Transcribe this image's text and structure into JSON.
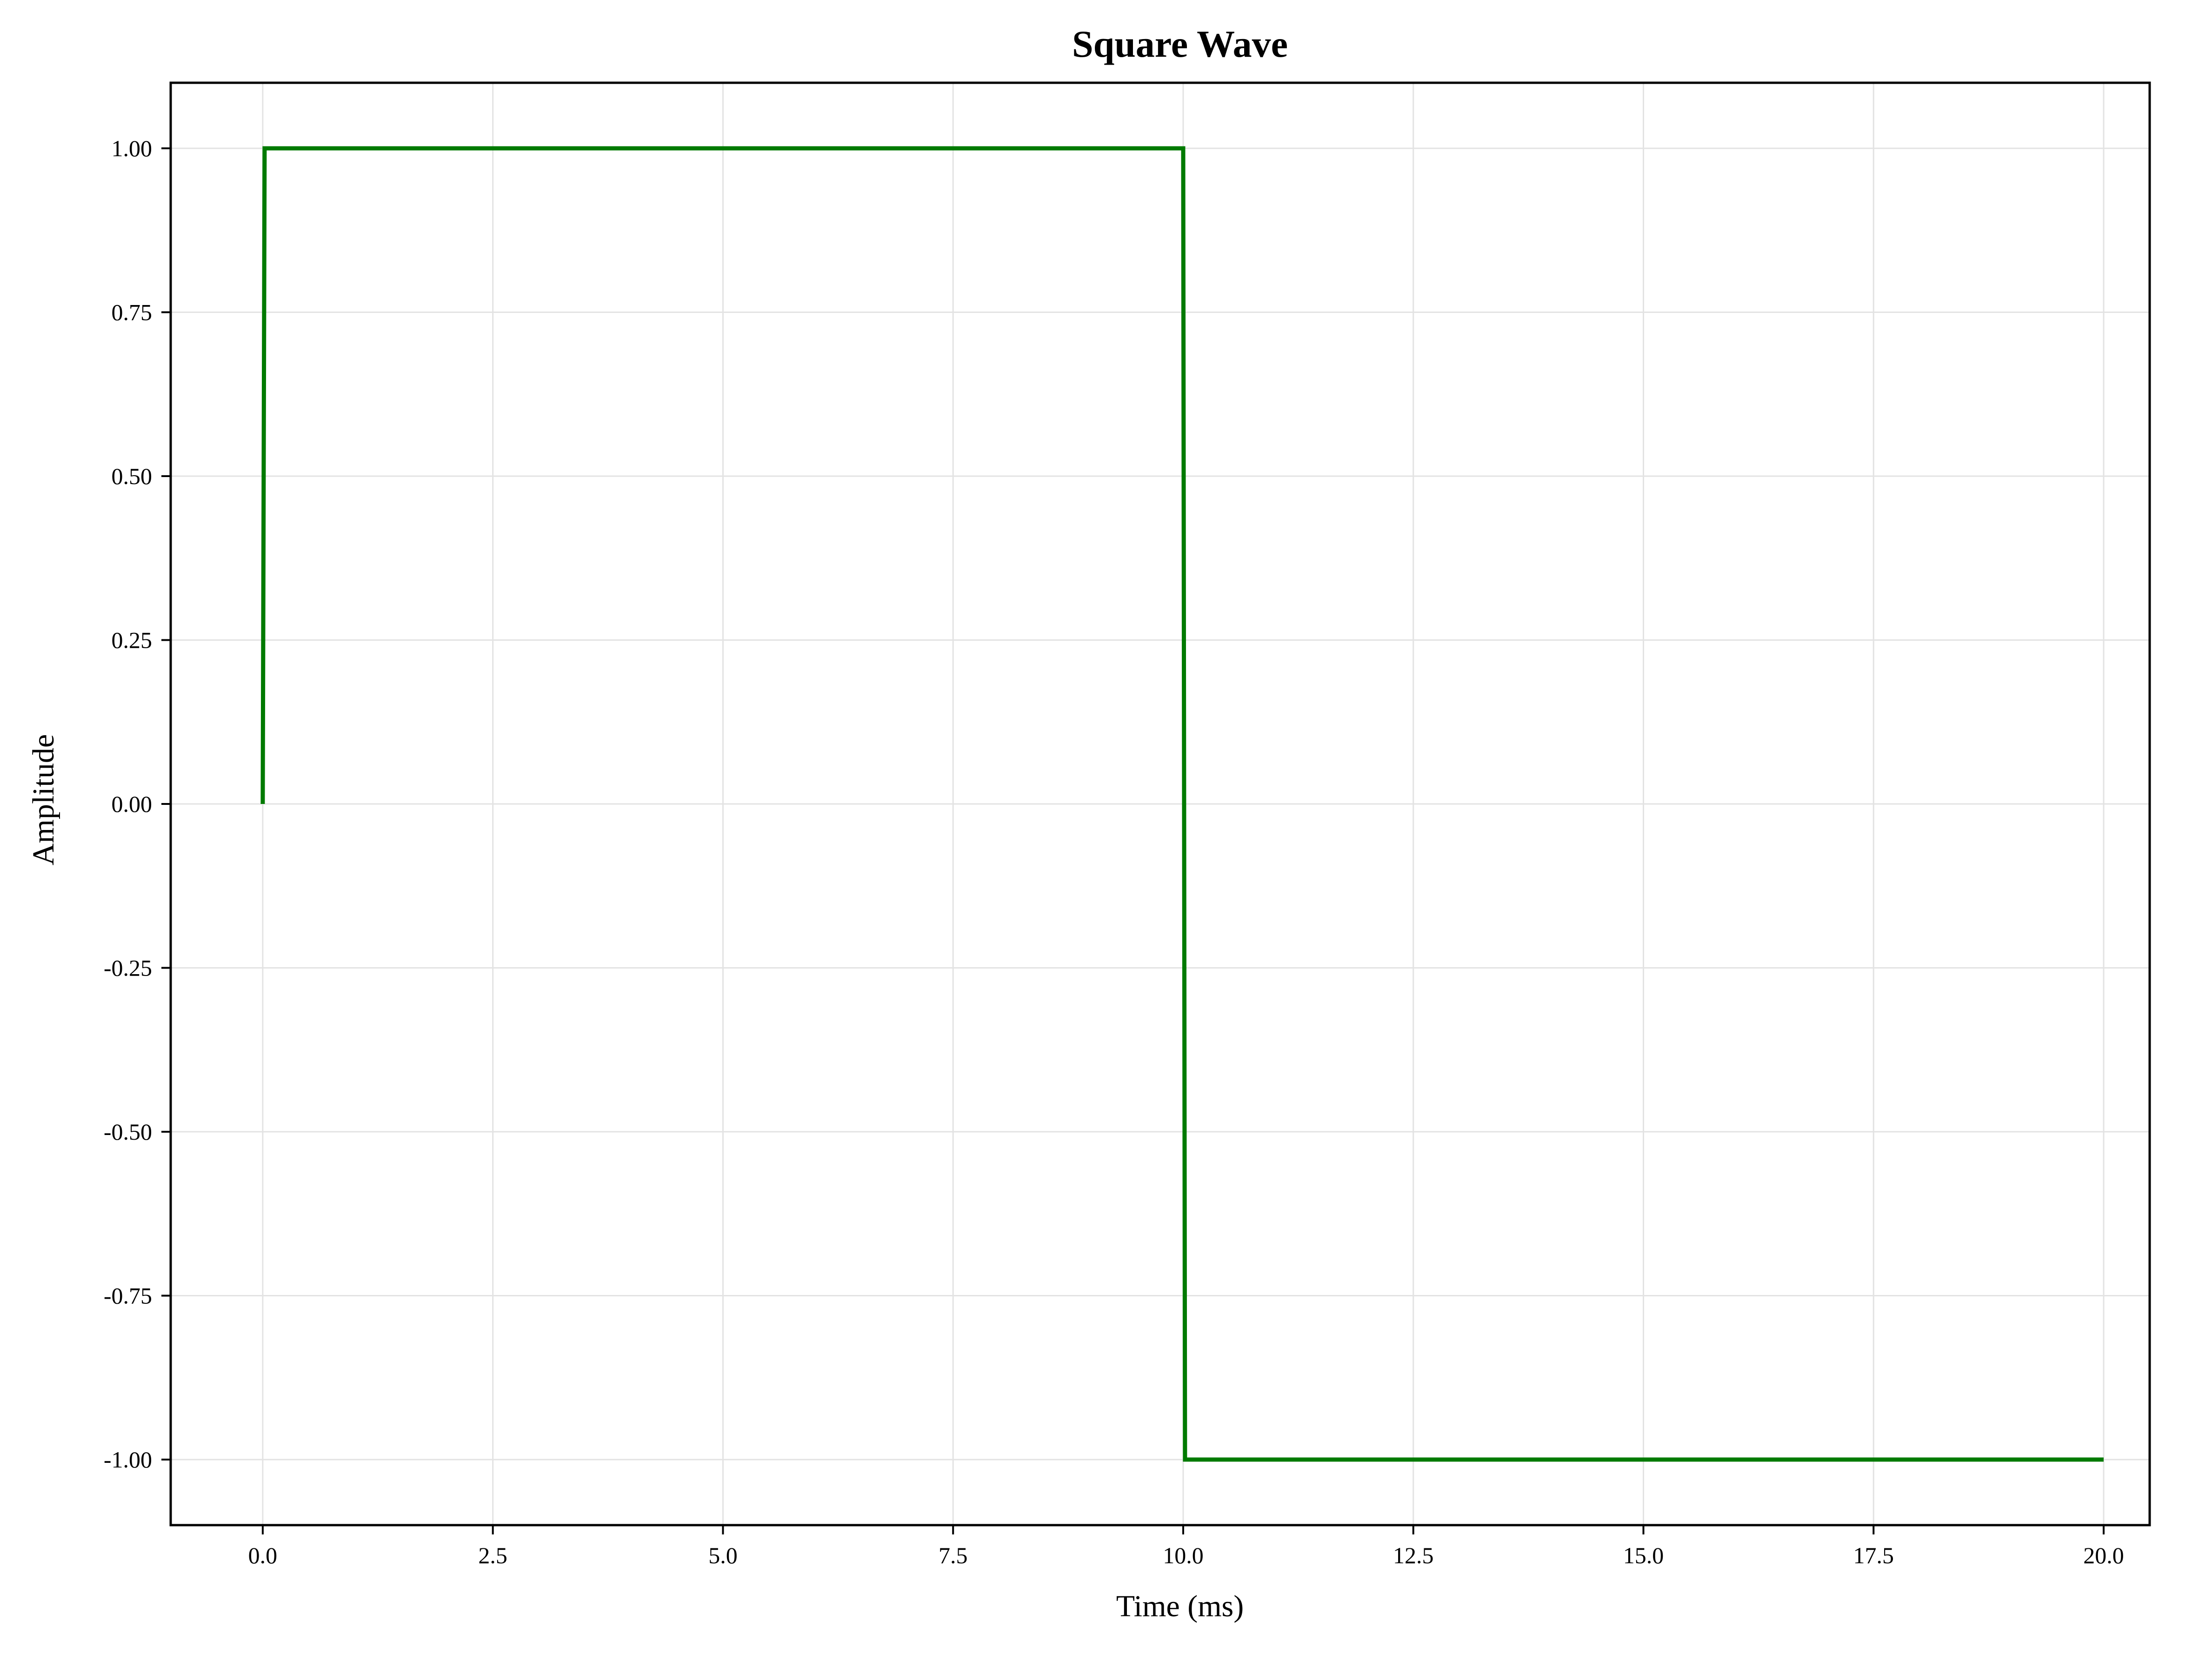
{
  "chart_data": {
    "type": "line",
    "title": "Square Wave",
    "xlabel": "Time (ms)",
    "ylabel": "Amplitude",
    "xlim": [
      -1.0,
      20.5
    ],
    "ylim": [
      -1.1,
      1.1
    ],
    "x_ticks": [
      0.0,
      2.5,
      5.0,
      7.5,
      10.0,
      12.5,
      15.0,
      17.5,
      20.0
    ],
    "x_tick_labels": [
      "0.0",
      "2.5",
      "5.0",
      "7.5",
      "10.0",
      "12.5",
      "15.0",
      "17.5",
      "20.0"
    ],
    "y_ticks": [
      1.0,
      0.75,
      0.5,
      0.25,
      0.0,
      -0.25,
      -0.5,
      -0.75,
      -1.0
    ],
    "y_tick_labels": [
      "1.00",
      "0.75",
      "0.50",
      "0.25",
      "0.00",
      "-0.25",
      "-0.50",
      "-0.75",
      "-1.00"
    ],
    "grid": true,
    "series": [
      {
        "color": "#007a00",
        "x": [
          0.0,
          0.02,
          10.0,
          10.02,
          20.0
        ],
        "y": [
          0.0,
          1.0,
          1.0,
          -1.0,
          -1.0
        ]
      }
    ]
  }
}
